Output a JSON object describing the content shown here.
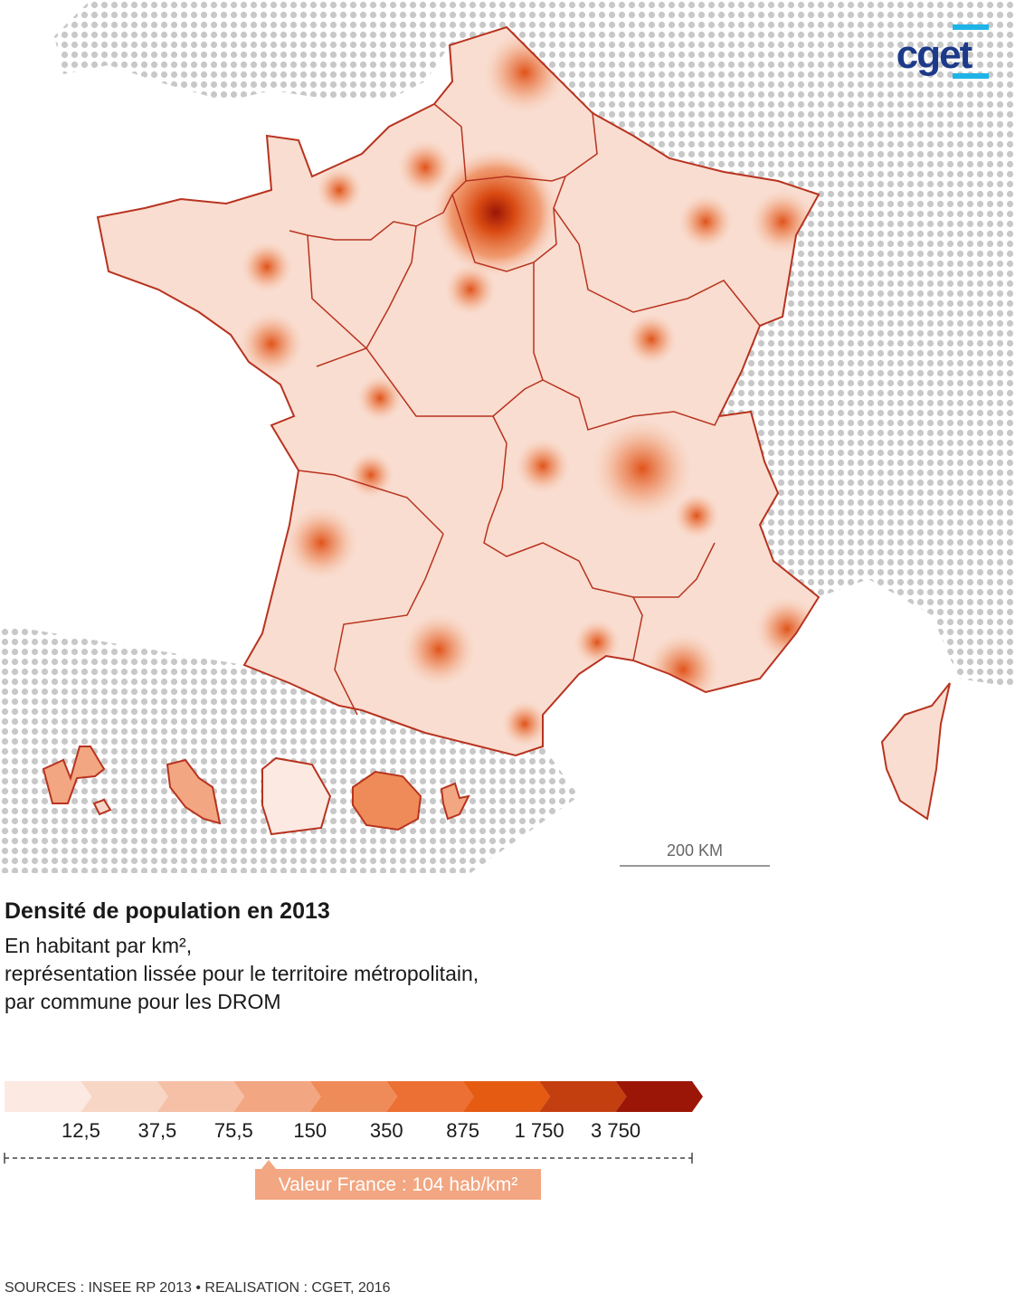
{
  "logo": "cget",
  "scale_bar": "200 KM",
  "title": "Densité de population en 2013",
  "subtitle": [
    "En habitant par km²,",
    "représentation lissée pour le territoire métropolitain,",
    "par commune pour les DROM"
  ],
  "legend": {
    "colors": [
      "#fbe9e2",
      "#f8d6c6",
      "#f5c0a6",
      "#f2a681",
      "#ef8b58",
      "#ec6f33",
      "#e55b12",
      "#c43f10",
      "#9b1606"
    ],
    "breaks": [
      "12,5",
      "37,5",
      "75,5",
      "150",
      "350",
      "875",
      "1 750",
      "3 750"
    ],
    "france_value": "Valeur France : 104 hab/km²"
  },
  "source": "SOURCES : INSEE RP 2013 • REALISATION : CGET, 2016"
}
